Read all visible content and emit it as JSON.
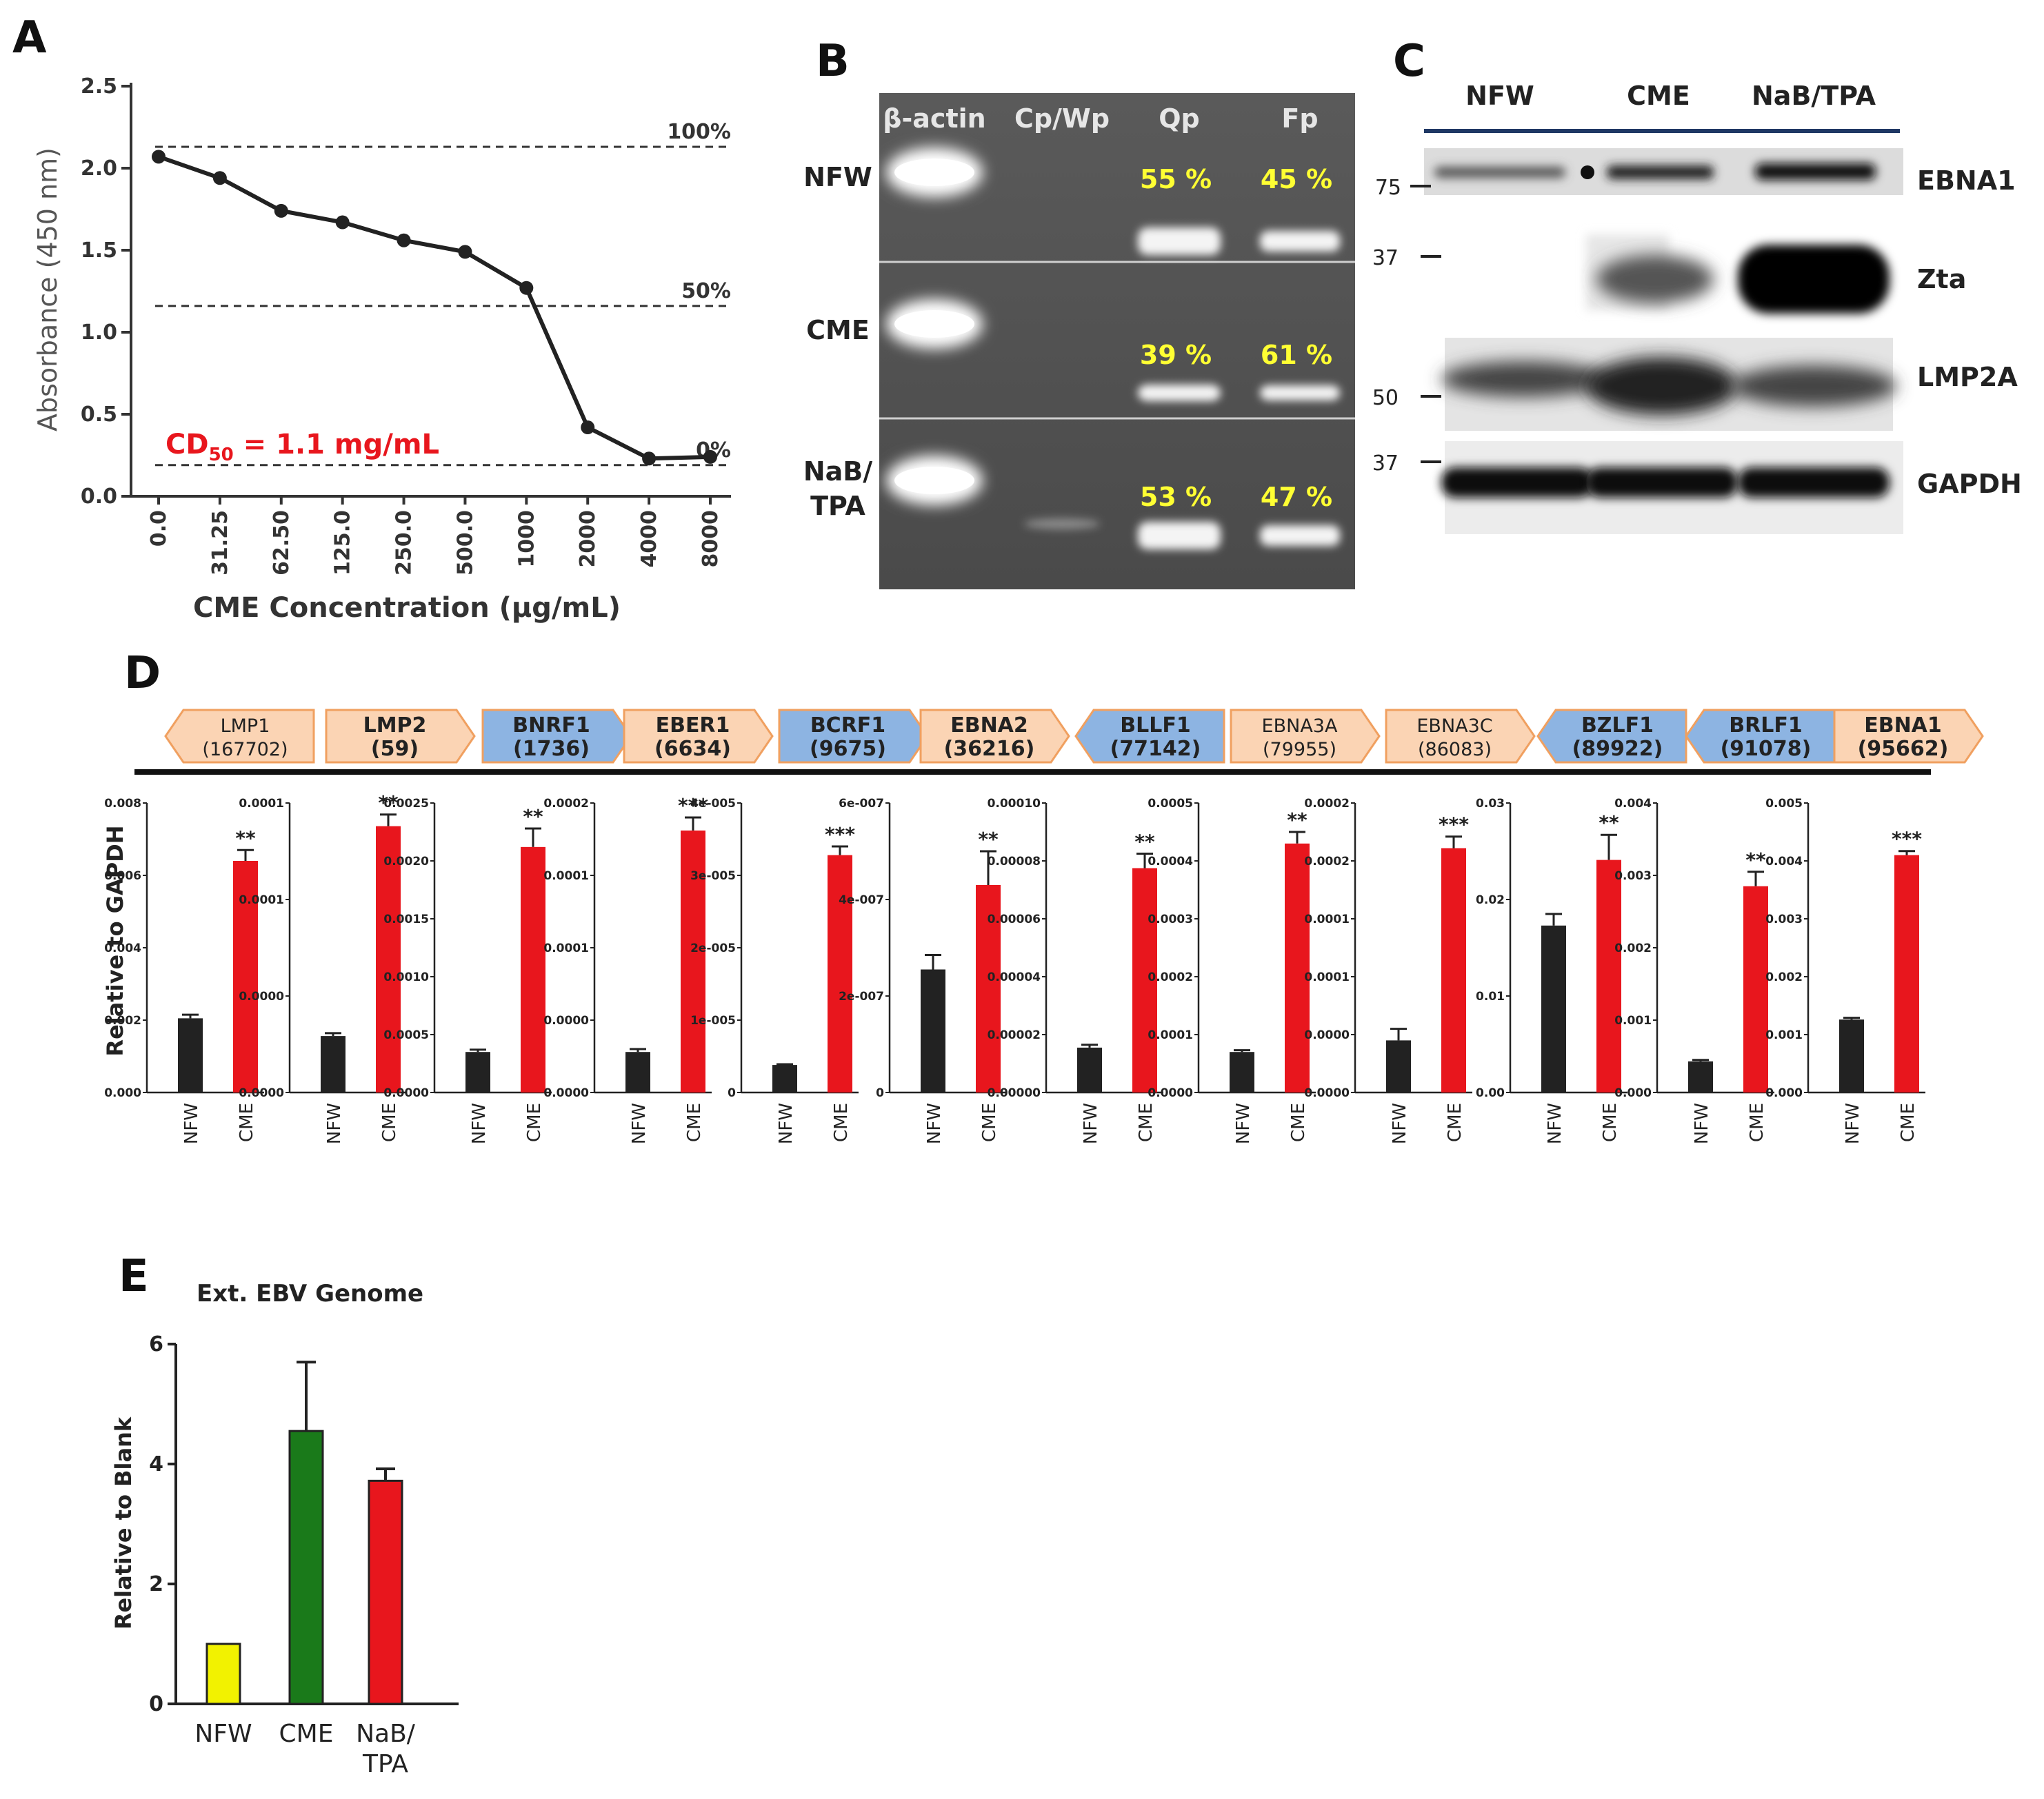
{
  "panel_labels": {
    "a": "A",
    "b": "B",
    "c": "C",
    "d": "D",
    "e": "E"
  },
  "colors": {
    "black": "#222222",
    "red": "#e8161d",
    "green": "#1a7a1a",
    "yellow": "#f2f200",
    "orange_arrow": "#fbd4b4",
    "orange_border": "#f0a060",
    "blue_arrow": "#8db4e2",
    "gel_text": "#ffff33",
    "cd50_red": "#e8161d",
    "rule_blue": "#1f3864"
  },
  "chart_data": [
    {
      "panel": "A",
      "type": "line",
      "xlabel": "CME Concentration (μg/mL)",
      "ylabel": "Absorbance (450 nm)",
      "categories": [
        "0.0",
        "31.25",
        "62.50",
        "125.0",
        "250.0",
        "500.0",
        "1000",
        "2000",
        "4000",
        "8000"
      ],
      "values": [
        2.07,
        1.94,
        1.74,
        1.67,
        1.56,
        1.49,
        1.27,
        0.42,
        0.23,
        0.24
      ],
      "ylim": [
        0,
        2.5
      ],
      "yticks": [
        "0.0",
        "0.5",
        "1.0",
        "1.5",
        "2.0",
        "2.5"
      ],
      "reference_lines": [
        {
          "label": "100%",
          "y": 2.13
        },
        {
          "label": "50%",
          "y": 1.16
        },
        {
          "label": "0%",
          "y": 0.19
        }
      ],
      "annotation": {
        "prefix": "CD",
        "subscript": "50",
        "suffix": " = 1.1 mg/mL"
      }
    },
    {
      "panel": "D",
      "type": "bar",
      "ylabel": "Relative to GAPDH",
      "categories": [
        "NFW",
        "CME"
      ],
      "genes": [
        {
          "name": "LMP1",
          "pos": "(167702)",
          "dir": "left",
          "color": "orange",
          "bold": false,
          "yticks": [
            "0.000",
            "0.002",
            "0.004",
            "0.006",
            "0.008"
          ],
          "ymax": 0.008,
          "values": [
            0.00205,
            0.0064
          ],
          "errors": [
            0.0001,
            0.0003
          ],
          "sig": "**"
        },
        {
          "name": "LMP2",
          "pos": "(59)",
          "dir": "right",
          "color": "orange",
          "bold": true,
          "yticks": [
            "0.0000",
            "0.0000",
            "0.0001",
            "0.0001"
          ],
          "ymax": 0.0001,
          "values": [
            1.95e-05,
            9.2e-05
          ],
          "errors": [
            1e-06,
            4e-06
          ],
          "sig": "**"
        },
        {
          "name": "BNRF1",
          "pos": "(1736)",
          "dir": "right",
          "color": "blue",
          "bold": true,
          "yticks": [
            "0.0000",
            "0.0005",
            "0.0010",
            "0.0015",
            "0.0020",
            "0.0025"
          ],
          "ymax": 0.0025,
          "values": [
            0.00035,
            0.00212
          ],
          "errors": [
            2e-05,
            0.00016
          ],
          "sig": "**"
        },
        {
          "name": "EBER1",
          "pos": "(6634)",
          "dir": "right",
          "color": "orange",
          "bold": true,
          "yticks": [
            "0.0000",
            "0.0000",
            "0.0001",
            "0.0001",
            "0.0002"
          ],
          "ymax": 0.0002,
          "values": [
            2.8e-05,
            0.000181
          ],
          "errors": [
            2e-06,
            9e-06
          ],
          "sig": "***"
        },
        {
          "name": "BCRF1",
          "pos": "(9675)",
          "dir": "right",
          "color": "blue",
          "bold": true,
          "yticks": [
            "0",
            "1e-005",
            "2e-005",
            "3e-005",
            "4e-005"
          ],
          "ymax": 4e-05,
          "values": [
            3.8e-06,
            3.28e-05
          ],
          "errors": [
            1e-07,
            1.2e-06
          ],
          "sig": "***"
        },
        {
          "name": "EBNA2",
          "pos": "(36216)",
          "dir": "right",
          "color": "orange",
          "bold": true,
          "yticks": [
            "0",
            "2e-007",
            "4e-007",
            "6e-007"
          ],
          "ymax": 6e-07,
          "values": [
            2.55e-07,
            4.3e-07
          ],
          "errors": [
            3e-08,
            7e-08
          ],
          "sig": "**"
        },
        {
          "name": "BLLF1",
          "pos": "(77142)",
          "dir": "left",
          "color": "blue",
          "bold": true,
          "yticks": [
            "0.00000",
            "0.00002",
            "0.00004",
            "0.00006",
            "0.00008",
            "0.00010"
          ],
          "ymax": 0.0001,
          "values": [
            1.55e-05,
            7.75e-05
          ],
          "errors": [
            1e-06,
            5e-06
          ],
          "sig": "**"
        },
        {
          "name": "EBNA3A",
          "pos": "(79955)",
          "dir": "right",
          "color": "orange",
          "bold": false,
          "yticks": [
            "0.0000",
            "0.0001",
            "0.0002",
            "0.0003",
            "0.0004",
            "0.0005"
          ],
          "ymax": 0.0005,
          "values": [
            7e-05,
            0.00043
          ],
          "errors": [
            3e-06,
            2e-05
          ],
          "sig": "**"
        },
        {
          "name": "EBNA3C",
          "pos": "(86083)",
          "dir": "right",
          "color": "orange",
          "bold": false,
          "yticks": [
            "0.0000",
            "0.0000",
            "0.0001",
            "0.0001",
            "0.0002",
            "0.0002"
          ],
          "ymax": 0.00025,
          "values": [
            4.5e-05,
            0.000211
          ],
          "errors": [
            1e-05,
            1e-05
          ],
          "sig": "***"
        },
        {
          "name": "BZLF1",
          "pos": "(89922)",
          "dir": "left",
          "color": "blue",
          "bold": true,
          "yticks": [
            "0.00",
            "0.01",
            "0.02",
            "0.03"
          ],
          "ymax": 0.03,
          "values": [
            0.0173,
            0.0241
          ],
          "errors": [
            0.0012,
            0.0026
          ],
          "sig": "**"
        },
        {
          "name": "BRLF1",
          "pos": "(91078)",
          "dir": "left",
          "color": "blue",
          "bold": true,
          "yticks": [
            "0.000",
            "0.001",
            "0.002",
            "0.003",
            "0.004"
          ],
          "ymax": 0.004,
          "values": [
            0.00043,
            0.00285
          ],
          "errors": [
            2e-05,
            0.0002
          ],
          "sig": "**"
        },
        {
          "name": "EBNA1",
          "pos": "(95662)",
          "dir": "right",
          "color": "orange",
          "bold": true,
          "yticks": [
            "0.000",
            "0.001",
            "0.002",
            "0.003",
            "0.004",
            "0.005"
          ],
          "ymax": 0.005,
          "values": [
            0.00126,
            0.0041
          ],
          "errors": [
            3e-05,
            7e-05
          ],
          "sig": "***"
        }
      ]
    },
    {
      "panel": "E",
      "type": "bar",
      "title": "Ext. EBV Genome",
      "ylabel": "Relative to Blank",
      "categories": [
        "NFW",
        "CME",
        "NaB/\nTPA"
      ],
      "values": [
        1.0,
        4.55,
        3.72
      ],
      "errors": [
        0.0,
        1.15,
        0.2
      ],
      "ylim": [
        0,
        6
      ],
      "yticks": [
        "0",
        "2",
        "4",
        "6"
      ]
    }
  ],
  "gel_B": {
    "columns": [
      "β-actin",
      "Cp/Wp",
      "Qp",
      "Fp"
    ],
    "rows": [
      {
        "label": "NFW",
        "qp": "55 %",
        "fp": "45 %"
      },
      {
        "label": "CME",
        "qp": "39 %",
        "fp": "61 %"
      },
      {
        "label": "NaB/\nTPA",
        "qp": "53 %",
        "fp": "47 %"
      }
    ]
  },
  "blot_C": {
    "lanes": [
      "NFW",
      "CME",
      "NaB/TPA"
    ],
    "markers": [
      "75",
      "37",
      "50",
      "37"
    ],
    "proteins": [
      "EBNA1",
      "Zta",
      "LMP2A",
      "GAPDH"
    ]
  }
}
